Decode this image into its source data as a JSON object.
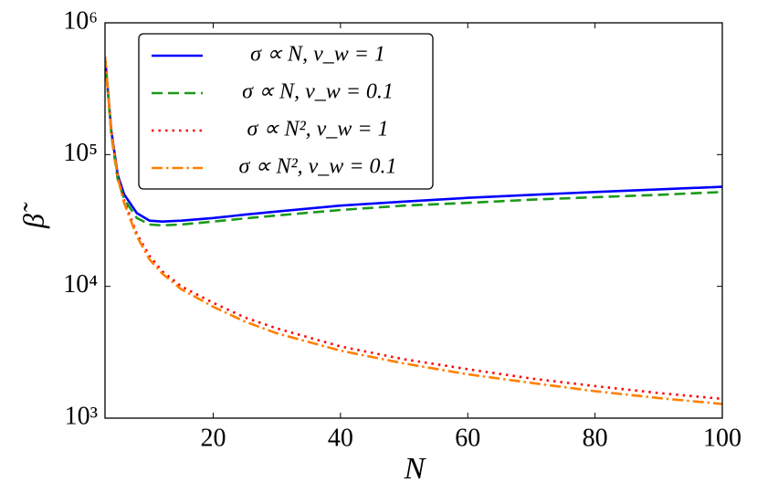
{
  "chart_data": {
    "type": "line",
    "xlabel": "N",
    "ylabel": "β̃",
    "log_y": true,
    "legend": "upper left",
    "xlim": [
      3,
      100
    ],
    "xticks": [
      20,
      40,
      60,
      80,
      100
    ],
    "ylim": [
      1000,
      1000000
    ],
    "yticks": [
      {
        "value": 1000,
        "label": "10³"
      },
      {
        "value": 10000,
        "label": "10⁴"
      },
      {
        "value": 100000,
        "label": "10⁵"
      },
      {
        "value": 1000000,
        "label": "10⁶"
      }
    ],
    "x": [
      3,
      4,
      5,
      6,
      8,
      10,
      12,
      15,
      20,
      25,
      30,
      40,
      50,
      60,
      70,
      80,
      90,
      100
    ],
    "series": [
      {
        "name": "σ ∝ N,  v_w = 1",
        "color": "#0000ff",
        "linestyle": "solid",
        "values": [
          550000,
          150000,
          70000,
          50000,
          36000,
          31500,
          31000,
          31500,
          33000,
          35000,
          37000,
          41000,
          44000,
          47000,
          49500,
          52000,
          54500,
          57000
        ]
      },
      {
        "name": "σ ∝ N,  v_w = 0.1",
        "color": "#1a9a1a",
        "linestyle": "dashed",
        "values": [
          550000,
          140000,
          65000,
          46000,
          33000,
          29500,
          29000,
          29500,
          31000,
          32800,
          34500,
          38000,
          41000,
          43000,
          45500,
          47500,
          49500,
          52000
        ]
      },
      {
        "name": "σ ∝ N²,  v_w = 1",
        "color": "#ff0000",
        "linestyle": "dotted",
        "values": [
          550000,
          150000,
          70000,
          45000,
          25000,
          17000,
          13000,
          10000,
          7500,
          5800,
          4800,
          3500,
          2800,
          2350,
          2000,
          1750,
          1550,
          1400
        ]
      },
      {
        "name": "σ ∝ N²,  v_w = 0.1",
        "color": "#ff8000",
        "linestyle": "dashdot",
        "values": [
          550000,
          145000,
          67000,
          43000,
          24000,
          16000,
          12500,
          9500,
          7000,
          5400,
          4400,
          3250,
          2600,
          2150,
          1850,
          1600,
          1420,
          1280
        ]
      }
    ]
  }
}
